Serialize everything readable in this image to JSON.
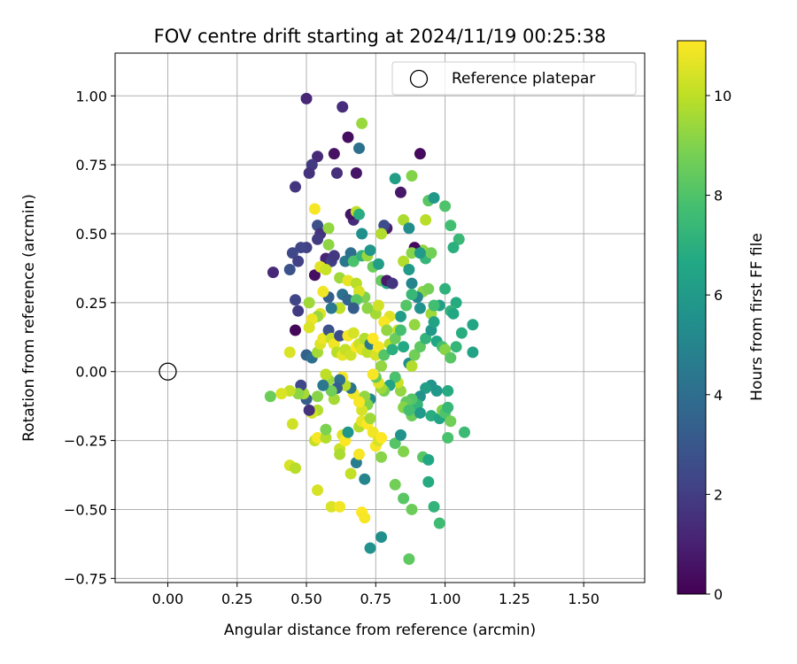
{
  "chart_data": {
    "type": "scatter",
    "title": "FOV centre drift starting at 2024/11/19 00:25:38",
    "xlabel": "Angular distance from reference (arcmin)",
    "ylabel": "Rotation from reference (arcmin)",
    "xlim": [
      -0.19,
      1.72
    ],
    "ylim": [
      -0.765,
      1.155
    ],
    "xticks": [
      "0.00",
      "0.25",
      "0.50",
      "0.75",
      "1.00",
      "1.25",
      "1.50"
    ],
    "yticks": [
      "−0.75",
      "−0.50",
      "−0.25",
      "0.00",
      "0.25",
      "0.50",
      "0.75",
      "1.00"
    ],
    "grid": true,
    "legend": {
      "position": "upper-right",
      "label": "Reference platepar",
      "marker": "open-circle"
    },
    "reference_point": {
      "x": 0.0,
      "y": 0.0
    },
    "colorbar": {
      "label": "Hours from first FF file",
      "cmap": "viridis",
      "range": [
        0,
        11.1
      ],
      "ticks": [
        "0",
        "2",
        "4",
        "6",
        "8",
        "10"
      ]
    },
    "fields": [
      "x",
      "y",
      "hours"
    ],
    "points": [
      [
        0.5,
        0.99,
        1.2
      ],
      [
        0.63,
        0.96,
        1.4
      ],
      [
        0.65,
        0.85,
        0.4
      ],
      [
        0.69,
        0.81,
        4.1
      ],
      [
        0.7,
        0.9,
        9.4
      ],
      [
        0.54,
        0.78,
        1.3
      ],
      [
        0.52,
        0.75,
        1.9
      ],
      [
        0.6,
        0.79,
        0.5
      ],
      [
        0.51,
        0.72,
        1.6
      ],
      [
        0.61,
        0.72,
        1.5
      ],
      [
        0.68,
        0.72,
        0.6
      ],
      [
        0.46,
        0.67,
        1.7
      ],
      [
        0.91,
        0.79,
        0.3
      ],
      [
        0.88,
        0.71,
        9.0
      ],
      [
        0.82,
        0.7,
        6.2
      ],
      [
        0.84,
        0.65,
        0.7
      ],
      [
        0.94,
        0.62,
        8.2
      ],
      [
        0.96,
        0.63,
        5.9
      ],
      [
        1.0,
        0.6,
        8.0
      ],
      [
        0.85,
        0.55,
        9.7
      ],
      [
        0.93,
        0.55,
        9.9
      ],
      [
        0.87,
        0.52,
        5.4
      ],
      [
        1.02,
        0.53,
        7.7
      ],
      [
        0.79,
        0.52,
        0.9
      ],
      [
        0.78,
        0.53,
        2.6
      ],
      [
        0.77,
        0.5,
        9.8
      ],
      [
        0.7,
        0.5,
        5.5
      ],
      [
        0.67,
        0.55,
        1.4
      ],
      [
        0.66,
        0.57,
        0.6
      ],
      [
        0.68,
        0.58,
        10.0
      ],
      [
        0.69,
        0.57,
        6.9
      ],
      [
        0.53,
        0.59,
        11.0
      ],
      [
        0.54,
        0.53,
        2.7
      ],
      [
        0.55,
        0.5,
        1.6
      ],
      [
        0.5,
        0.45,
        2.1
      ],
      [
        0.48,
        0.45,
        2.3
      ],
      [
        0.45,
        0.43,
        2.4
      ],
      [
        0.47,
        0.4,
        2.1
      ],
      [
        0.44,
        0.37,
        2.8
      ],
      [
        0.38,
        0.36,
        1.3
      ],
      [
        0.53,
        0.35,
        0.4
      ],
      [
        0.54,
        0.48,
        1.9
      ],
      [
        0.58,
        0.52,
        9.3
      ],
      [
        0.57,
        0.41,
        1.1
      ],
      [
        0.58,
        0.46,
        9.2
      ],
      [
        0.59,
        0.4,
        2.0
      ],
      [
        0.6,
        0.42,
        1.8
      ],
      [
        0.55,
        0.38,
        10.6
      ],
      [
        0.57,
        0.37,
        10.2
      ],
      [
        0.62,
        0.34,
        9.5
      ],
      [
        0.63,
        0.28,
        4.1
      ],
      [
        0.65,
        0.26,
        3.7
      ],
      [
        0.65,
        0.33,
        10.7
      ],
      [
        0.68,
        0.32,
        9.9
      ],
      [
        0.64,
        0.4,
        4.4
      ],
      [
        0.66,
        0.43,
        4.0
      ],
      [
        0.67,
        0.4,
        7.9
      ],
      [
        0.7,
        0.42,
        7.2
      ],
      [
        0.72,
        0.42,
        9.4
      ],
      [
        0.73,
        0.44,
        5.8
      ],
      [
        0.74,
        0.38,
        8.6
      ],
      [
        0.76,
        0.39,
        6.2
      ],
      [
        0.77,
        0.33,
        8.5
      ],
      [
        0.79,
        0.32,
        6.6
      ],
      [
        0.79,
        0.33,
        0.8
      ],
      [
        0.81,
        0.32,
        1.7
      ],
      [
        0.85,
        0.4,
        9.8
      ],
      [
        0.87,
        0.37,
        6.0
      ],
      [
        0.88,
        0.32,
        5.0
      ],
      [
        0.9,
        0.44,
        1.1
      ],
      [
        0.92,
        0.44,
        9.3
      ],
      [
        0.93,
        0.41,
        7.3
      ],
      [
        0.89,
        0.45,
        0.3
      ],
      [
        0.95,
        0.43,
        8.7
      ],
      [
        1.05,
        0.48,
        7.4
      ],
      [
        1.03,
        0.45,
        7.0
      ],
      [
        0.88,
        0.43,
        9.1
      ],
      [
        0.91,
        0.43,
        6.0
      ],
      [
        1.0,
        0.3,
        7.1
      ],
      [
        1.04,
        0.25,
        6.8
      ],
      [
        1.02,
        0.22,
        7.2
      ],
      [
        1.03,
        0.21,
        6.6
      ],
      [
        0.98,
        0.24,
        6.3
      ],
      [
        0.92,
        0.29,
        9.1
      ],
      [
        0.94,
        0.3,
        8.8
      ],
      [
        0.9,
        0.27,
        5.1
      ],
      [
        0.88,
        0.28,
        7.4
      ],
      [
        0.91,
        0.23,
        5.6
      ],
      [
        0.95,
        0.21,
        9.5
      ],
      [
        0.96,
        0.24,
        7.7
      ],
      [
        0.89,
        0.17,
        9.3
      ],
      [
        0.86,
        0.24,
        8.1
      ],
      [
        0.84,
        0.2,
        6.1
      ],
      [
        0.83,
        0.15,
        10.2
      ],
      [
        0.8,
        0.2,
        10.6
      ],
      [
        0.78,
        0.18,
        11.0
      ],
      [
        0.75,
        0.21,
        9.6
      ],
      [
        0.76,
        0.24,
        10.3
      ],
      [
        0.72,
        0.23,
        9.2
      ],
      [
        0.71,
        0.27,
        8.9
      ],
      [
        0.69,
        0.29,
        10.4
      ],
      [
        0.68,
        0.26,
        8.2
      ],
      [
        0.67,
        0.23,
        3.2
      ],
      [
        0.62,
        0.23,
        10.0
      ],
      [
        0.59,
        0.23,
        4.4
      ],
      [
        0.58,
        0.27,
        3.2
      ],
      [
        0.56,
        0.29,
        10.9
      ],
      [
        0.55,
        0.21,
        10.6
      ],
      [
        0.54,
        0.2,
        9.4
      ],
      [
        0.52,
        0.19,
        10.8
      ],
      [
        0.51,
        0.16,
        10.5
      ],
      [
        0.51,
        0.25,
        9.5
      ],
      [
        0.46,
        0.26,
        2.3
      ],
      [
        0.47,
        0.22,
        1.9
      ],
      [
        0.46,
        0.15,
        0.2
      ],
      [
        0.5,
        0.06,
        3.5
      ],
      [
        0.52,
        0.05,
        4.0
      ],
      [
        0.54,
        0.07,
        9.6
      ],
      [
        0.55,
        0.1,
        10.5
      ],
      [
        0.56,
        0.12,
        10.8
      ],
      [
        0.58,
        0.15,
        2.8
      ],
      [
        0.59,
        0.12,
        10.2
      ],
      [
        0.6,
        0.1,
        10.9
      ],
      [
        0.61,
        0.07,
        9.9
      ],
      [
        0.62,
        0.13,
        2.6
      ],
      [
        0.63,
        0.06,
        10.7
      ],
      [
        0.64,
        0.08,
        10.1
      ],
      [
        0.65,
        0.13,
        11.0
      ],
      [
        0.66,
        0.06,
        10.3
      ],
      [
        0.67,
        0.14,
        10.4
      ],
      [
        0.68,
        0.09,
        11.1
      ],
      [
        0.69,
        0.1,
        10.2
      ],
      [
        0.7,
        0.08,
        10.6
      ],
      [
        0.71,
        0.12,
        9.8
      ],
      [
        0.72,
        0.07,
        10.0
      ],
      [
        0.73,
        0.1,
        4.5
      ],
      [
        0.74,
        0.12,
        11.1
      ],
      [
        0.75,
        0.06,
        10.4
      ],
      [
        0.76,
        0.09,
        11.0
      ],
      [
        0.77,
        0.02,
        9.3
      ],
      [
        0.78,
        0.06,
        8.1
      ],
      [
        0.79,
        0.15,
        9.3
      ],
      [
        0.8,
        0.1,
        10.0
      ],
      [
        0.81,
        0.08,
        7.0
      ],
      [
        0.82,
        0.12,
        8.6
      ],
      [
        0.84,
        0.15,
        7.8
      ],
      [
        0.85,
        0.09,
        6.7
      ],
      [
        0.87,
        0.03,
        5.4
      ],
      [
        0.88,
        0.02,
        9.8
      ],
      [
        0.89,
        0.06,
        8.7
      ],
      [
        0.91,
        0.09,
        8.3
      ],
      [
        0.93,
        0.12,
        7.2
      ],
      [
        0.95,
        0.15,
        5.9
      ],
      [
        0.96,
        0.18,
        6.4
      ],
      [
        0.97,
        0.11,
        6.6
      ],
      [
        0.99,
        0.09,
        7.8
      ],
      [
        1.0,
        0.08,
        9.1
      ],
      [
        1.02,
        0.05,
        8.2
      ],
      [
        1.04,
        0.09,
        7.3
      ],
      [
        1.06,
        0.14,
        6.9
      ],
      [
        1.1,
        0.17,
        6.5
      ],
      [
        1.1,
        0.07,
        6.4
      ],
      [
        1.01,
        -0.07,
        6.8
      ],
      [
        0.97,
        -0.07,
        5.9
      ],
      [
        0.95,
        -0.05,
        5.7
      ],
      [
        0.93,
        -0.06,
        6.2
      ],
      [
        0.91,
        -0.09,
        5.6
      ],
      [
        0.9,
        -0.12,
        7.3
      ],
      [
        0.88,
        -0.1,
        8.1
      ],
      [
        0.86,
        -0.11,
        8.4
      ],
      [
        0.85,
        -0.13,
        9.1
      ],
      [
        0.84,
        -0.07,
        9.3
      ],
      [
        0.83,
        -0.04,
        10.2
      ],
      [
        0.82,
        -0.02,
        7.9
      ],
      [
        0.8,
        -0.05,
        6.4
      ],
      [
        0.78,
        -0.07,
        8.8
      ],
      [
        0.77,
        -0.06,
        9.5
      ],
      [
        0.76,
        -0.04,
        10.6
      ],
      [
        0.75,
        -0.02,
        8.4
      ],
      [
        0.74,
        -0.01,
        11.0
      ],
      [
        0.73,
        -0.1,
        5.3
      ],
      [
        0.72,
        -0.12,
        9.0
      ],
      [
        0.71,
        -0.09,
        9.3
      ],
      [
        0.7,
        -0.14,
        10.4
      ],
      [
        0.69,
        -0.11,
        11.0
      ],
      [
        0.67,
        -0.08,
        10.9
      ],
      [
        0.66,
        -0.06,
        4.2
      ],
      [
        0.64,
        -0.05,
        9.9
      ],
      [
        0.63,
        -0.02,
        11.0
      ],
      [
        0.62,
        -0.03,
        4.0
      ],
      [
        0.61,
        -0.06,
        3.3
      ],
      [
        0.6,
        -0.1,
        9.6
      ],
      [
        0.59,
        -0.07,
        8.7
      ],
      [
        0.58,
        -0.03,
        9.4
      ],
      [
        0.57,
        -0.01,
        10.0
      ],
      [
        0.56,
        -0.05,
        4.4
      ],
      [
        0.54,
        -0.09,
        9.1
      ],
      [
        0.54,
        -0.14,
        9.8
      ],
      [
        0.52,
        -0.15,
        10.4
      ],
      [
        0.51,
        -0.14,
        1.6
      ],
      [
        0.5,
        -0.1,
        3.3
      ],
      [
        0.49,
        -0.08,
        9.6
      ],
      [
        0.48,
        -0.05,
        2.4
      ],
      [
        0.47,
        -0.08,
        9.2
      ],
      [
        0.44,
        -0.07,
        10.1
      ],
      [
        0.41,
        -0.08,
        10.5
      ],
      [
        0.37,
        -0.09,
        8.6
      ],
      [
        0.45,
        -0.19,
        10.3
      ],
      [
        0.44,
        0.07,
        10.5
      ],
      [
        0.44,
        -0.34,
        10.4
      ],
      [
        0.46,
        -0.35,
        9.9
      ],
      [
        0.53,
        -0.25,
        10.1
      ],
      [
        0.54,
        -0.24,
        11.0
      ],
      [
        0.57,
        -0.24,
        9.8
      ],
      [
        0.57,
        -0.21,
        8.9
      ],
      [
        0.62,
        -0.28,
        10.2
      ],
      [
        0.62,
        -0.3,
        9.7
      ],
      [
        0.63,
        -0.23,
        10.6
      ],
      [
        0.64,
        -0.25,
        11.1
      ],
      [
        0.65,
        -0.22,
        5.8
      ],
      [
        0.66,
        -0.37,
        10.1
      ],
      [
        0.68,
        -0.33,
        4.7
      ],
      [
        0.69,
        -0.3,
        11.0
      ],
      [
        0.69,
        -0.2,
        9.8
      ],
      [
        0.7,
        -0.18,
        10.7
      ],
      [
        0.71,
        -0.39,
        5.0
      ],
      [
        0.72,
        -0.19,
        11.1
      ],
      [
        0.73,
        -0.17,
        9.5
      ],
      [
        0.74,
        -0.22,
        10.9
      ],
      [
        0.75,
        -0.27,
        11.0
      ],
      [
        0.76,
        -0.25,
        10.4
      ],
      [
        0.77,
        -0.24,
        11.1
      ],
      [
        0.77,
        -0.31,
        9.1
      ],
      [
        0.82,
        -0.26,
        8.1
      ],
      [
        0.84,
        -0.23,
        5.6
      ],
      [
        0.85,
        -0.29,
        9.0
      ],
      [
        0.88,
        -0.16,
        8.6
      ],
      [
        0.87,
        -0.14,
        7.8
      ],
      [
        0.91,
        -0.15,
        6.0
      ],
      [
        0.92,
        -0.31,
        8.2
      ],
      [
        0.94,
        -0.32,
        6.6
      ],
      [
        0.95,
        -0.16,
        6.9
      ],
      [
        0.98,
        -0.17,
        6.5
      ],
      [
        0.99,
        -0.14,
        9.0
      ],
      [
        1.0,
        -0.15,
        8.0
      ],
      [
        1.01,
        -0.13,
        7.4
      ],
      [
        1.02,
        -0.18,
        8.7
      ],
      [
        1.01,
        -0.24,
        7.9
      ],
      [
        1.07,
        -0.22,
        7.5
      ],
      [
        0.54,
        -0.43,
        10.4
      ],
      [
        0.59,
        -0.49,
        10.5
      ],
      [
        0.62,
        -0.49,
        10.9
      ],
      [
        0.7,
        -0.51,
        11.1
      ],
      [
        0.71,
        -0.53,
        11.0
      ],
      [
        0.73,
        -0.64,
        5.6
      ],
      [
        0.77,
        -0.6,
        5.5
      ],
      [
        0.82,
        -0.41,
        8.7
      ],
      [
        0.85,
        -0.46,
        8.2
      ],
      [
        0.88,
        -0.5,
        8.6
      ],
      [
        0.94,
        -0.4,
        6.8
      ],
      [
        0.96,
        -0.49,
        7.2
      ],
      [
        0.98,
        -0.55,
        7.6
      ],
      [
        0.87,
        -0.68,
        8.3
      ]
    ]
  }
}
